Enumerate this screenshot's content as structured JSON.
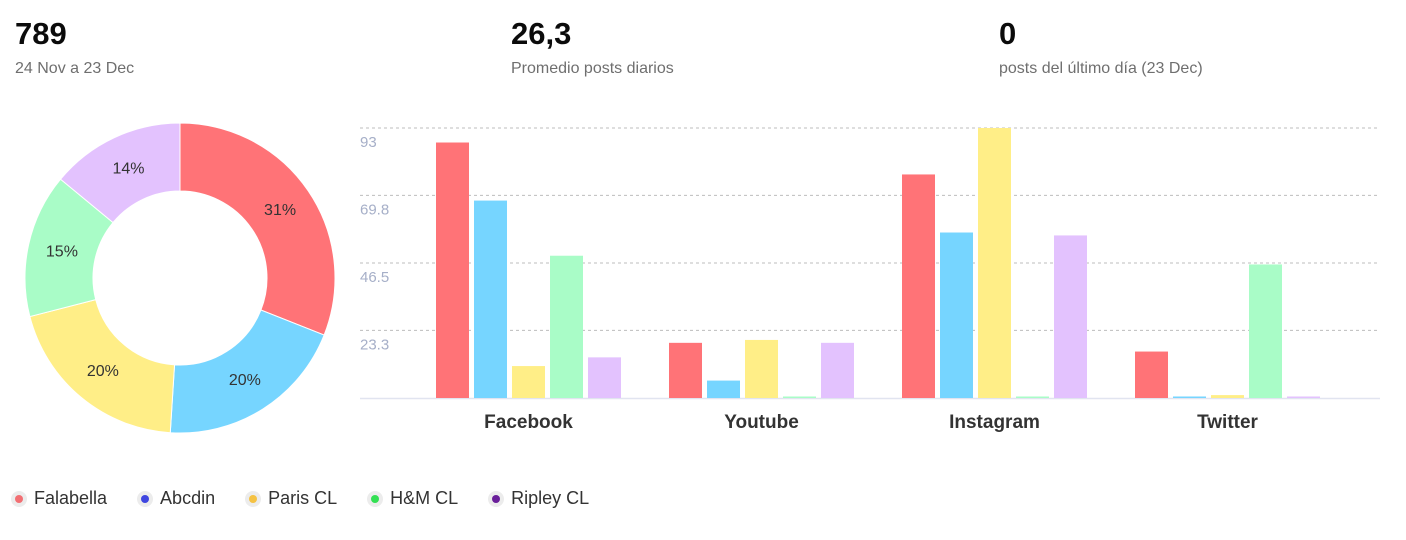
{
  "kpis": [
    {
      "value": "789",
      "label": "24 Nov a 23 Dec"
    },
    {
      "value": "26,3",
      "label": "Promedio posts diarios"
    },
    {
      "value": "0",
      "label": "posts del último día (23 Dec)"
    }
  ],
  "legend": [
    {
      "name": "Falabella",
      "color": "#f26f73"
    },
    {
      "name": "Abcdin",
      "color": "#3f46e0"
    },
    {
      "name": "Paris CL",
      "color": "#f5c243"
    },
    {
      "name": "H&M CL",
      "color": "#33e053"
    },
    {
      "name": "Ripley CL",
      "color": "#6a1f9a"
    }
  ],
  "chart_data": [
    {
      "type": "pie",
      "donut": true,
      "slices": [
        {
          "label": "31%",
          "value": 31,
          "color": "#ff7377"
        },
        {
          "label": "20%",
          "value": 20,
          "color": "#76d5ff"
        },
        {
          "label": "20%",
          "value": 20,
          "color": "#ffee87"
        },
        {
          "label": "15%",
          "value": 15,
          "color": "#a9fcc7"
        },
        {
          "label": "14%",
          "value": 14,
          "color": "#e3c2fe"
        }
      ]
    },
    {
      "type": "bar",
      "categories": [
        "Facebook",
        "Youtube",
        "Instagram",
        "Twitter"
      ],
      "ylim": [
        0,
        93
      ],
      "yticks": [
        "93",
        "69.8",
        "46.5",
        "23.3"
      ],
      "ytick_values": [
        93,
        69.8,
        46.5,
        23.3
      ],
      "grid": true,
      "series": [
        {
          "name": "Falabella",
          "color": "#ff7377",
          "values": [
            88,
            19,
            77,
            16
          ]
        },
        {
          "name": "Abcdin",
          "color": "#76d5ff",
          "values": [
            68,
            6,
            57,
            0.5
          ]
        },
        {
          "name": "Paris CL",
          "color": "#ffee87",
          "values": [
            11,
            20,
            93,
            1
          ]
        },
        {
          "name": "H&M CL",
          "color": "#a9fcc7",
          "values": [
            49,
            0.5,
            0.5,
            46
          ]
        },
        {
          "name": "Ripley CL",
          "color": "#e3c2fe",
          "values": [
            14,
            19,
            56,
            0.5
          ]
        }
      ]
    }
  ]
}
